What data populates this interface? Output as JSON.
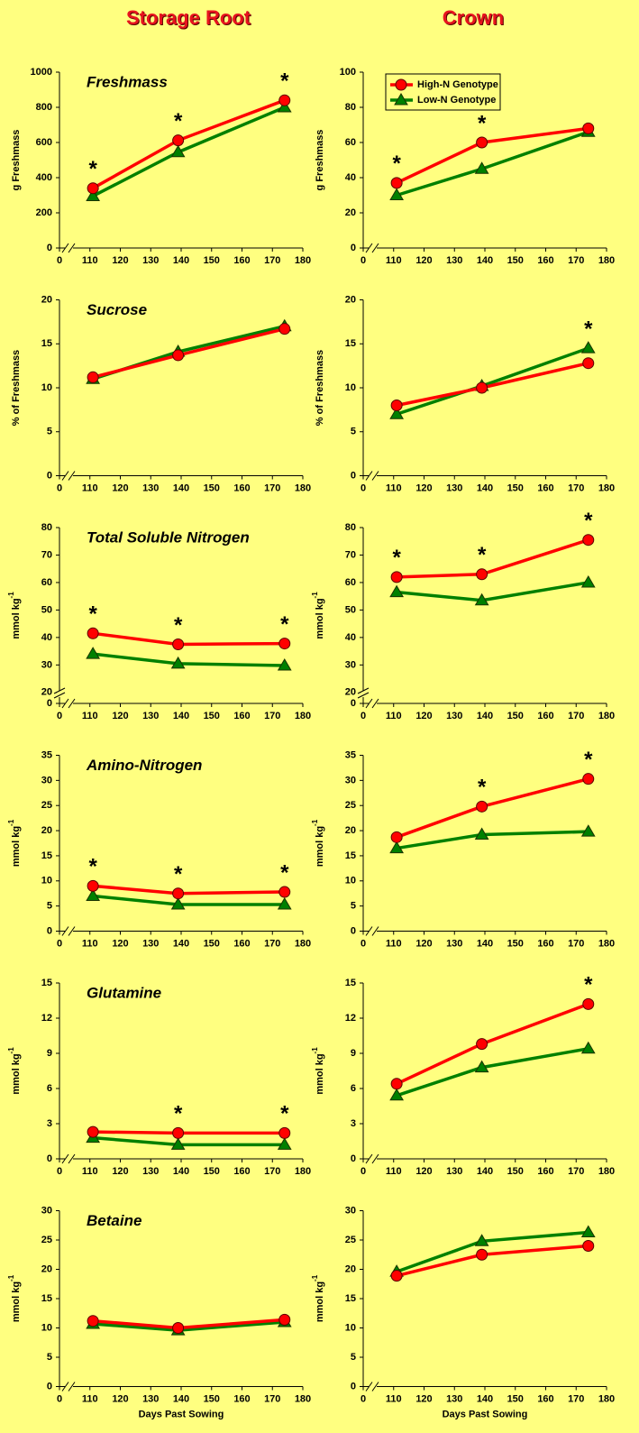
{
  "headers": [
    "Storage Root",
    "Crown"
  ],
  "chart_data": [
    {
      "type": "line",
      "title": "Freshmass",
      "y_label": "g Freshmass",
      "x": [
        111,
        139,
        174
      ],
      "xlim": [
        100,
        180
      ],
      "xticks": [
        0,
        110,
        120,
        130,
        140,
        150,
        160,
        170,
        180
      ],
      "x_break": true,
      "ylim": [
        0,
        1000
      ],
      "yticks": [
        0,
        200,
        400,
        600,
        800,
        1000
      ],
      "series": [
        {
          "color": "#ff0000",
          "marker": "circle",
          "values": [
            340,
            612,
            840
          ]
        },
        {
          "color": "#008000",
          "marker": "triangle",
          "values": [
            295,
            545,
            800
          ]
        }
      ],
      "significance_label": "*",
      "significant": [
        true,
        true,
        true
      ]
    },
    {
      "type": "line",
      "y_label": "g Freshmass",
      "x": [
        111,
        139,
        174
      ],
      "xlim": [
        100,
        180
      ],
      "xticks": [
        0,
        110,
        120,
        130,
        140,
        150,
        160,
        170,
        180
      ],
      "x_break": true,
      "ylim": [
        0,
        100
      ],
      "yticks": [
        0,
        20,
        40,
        60,
        80,
        100
      ],
      "series": [
        {
          "name": "High-N Genotype",
          "color": "#ff0000",
          "marker": "circle",
          "values": [
            37,
            60,
            68
          ]
        },
        {
          "name": "Low-N Genotype",
          "color": "#008000",
          "marker": "triangle",
          "values": [
            30,
            45,
            66
          ]
        }
      ],
      "legend": "upper left",
      "significance_label": "*",
      "significant": [
        true,
        true,
        false
      ]
    },
    {
      "type": "line",
      "title": "Sucrose",
      "y_label": "% of Freshmass",
      "x": [
        111,
        139,
        174
      ],
      "xlim": [
        100,
        180
      ],
      "xticks": [
        0,
        110,
        120,
        130,
        140,
        150,
        160,
        170,
        180
      ],
      "x_break": true,
      "ylim": [
        0,
        20
      ],
      "yticks": [
        0,
        5,
        10,
        15,
        20
      ],
      "series": [
        {
          "color": "#ff0000",
          "marker": "circle",
          "values": [
            11.2,
            13.7,
            16.7
          ]
        },
        {
          "color": "#008000",
          "marker": "triangle",
          "values": [
            11.0,
            14.1,
            17.0
          ]
        }
      ],
      "significance_label": "*",
      "significant": [
        false,
        false,
        false
      ]
    },
    {
      "type": "line",
      "y_label": "% of Freshmass",
      "x": [
        111,
        139,
        174
      ],
      "xlim": [
        100,
        180
      ],
      "xticks": [
        0,
        110,
        120,
        130,
        140,
        150,
        160,
        170,
        180
      ],
      "x_break": true,
      "ylim": [
        0,
        20
      ],
      "yticks": [
        0,
        5,
        10,
        15,
        20
      ],
      "series": [
        {
          "color": "#ff0000",
          "marker": "circle",
          "values": [
            8.0,
            10.0,
            12.8
          ]
        },
        {
          "color": "#008000",
          "marker": "triangle",
          "values": [
            7.0,
            10.2,
            14.5
          ]
        }
      ],
      "significance_label": "*",
      "significant": [
        false,
        false,
        true
      ]
    },
    {
      "type": "line",
      "title": "Total Soluble Nitrogen",
      "y_label": "mmol kg",
      "y_label_sup": "-1",
      "x": [
        111,
        139,
        174
      ],
      "xlim": [
        100,
        180
      ],
      "xticks": [
        0,
        110,
        120,
        130,
        140,
        150,
        160,
        170,
        180
      ],
      "x_break": true,
      "ylim": [
        16,
        80
      ],
      "yticks": [
        0,
        20,
        30,
        40,
        50,
        60,
        70,
        80
      ],
      "y_break": true,
      "series": [
        {
          "color": "#ff0000",
          "marker": "circle",
          "values": [
            41.5,
            37.5,
            37.8
          ]
        },
        {
          "color": "#008000",
          "marker": "triangle",
          "values": [
            34,
            30.5,
            29.8
          ]
        }
      ],
      "significance_label": "*",
      "significant": [
        true,
        true,
        true
      ]
    },
    {
      "type": "line",
      "y_label": "mmol kg",
      "y_label_sup": "-1",
      "x": [
        111,
        139,
        174
      ],
      "xlim": [
        100,
        180
      ],
      "xticks": [
        0,
        110,
        120,
        130,
        140,
        150,
        160,
        170,
        180
      ],
      "x_break": true,
      "ylim": [
        16,
        80
      ],
      "yticks": [
        0,
        20,
        30,
        40,
        50,
        60,
        70,
        80
      ],
      "y_break": true,
      "series": [
        {
          "color": "#ff0000",
          "marker": "circle",
          "values": [
            62,
            63,
            75.5
          ]
        },
        {
          "color": "#008000",
          "marker": "triangle",
          "values": [
            56.5,
            53.5,
            60
          ]
        }
      ],
      "significance_label": "*",
      "significant": [
        true,
        true,
        true
      ]
    },
    {
      "type": "line",
      "title": "Amino-Nitrogen",
      "y_label": "mmol kg",
      "y_label_sup": "-1",
      "x": [
        111,
        139,
        174
      ],
      "xlim": [
        100,
        180
      ],
      "xticks": [
        0,
        110,
        120,
        130,
        140,
        150,
        160,
        170,
        180
      ],
      "x_break": true,
      "ylim": [
        0,
        35
      ],
      "yticks": [
        0,
        5,
        10,
        15,
        20,
        25,
        30,
        35
      ],
      "series": [
        {
          "color": "#ff0000",
          "marker": "circle",
          "values": [
            9,
            7.5,
            7.8
          ]
        },
        {
          "color": "#008000",
          "marker": "triangle",
          "values": [
            7,
            5.3,
            5.3
          ]
        }
      ],
      "significance_label": "*",
      "significant": [
        true,
        true,
        true
      ]
    },
    {
      "type": "line",
      "y_label": "mmol kg",
      "y_label_sup": "-1",
      "x": [
        111,
        139,
        174
      ],
      "xlim": [
        100,
        180
      ],
      "xticks": [
        0,
        110,
        120,
        130,
        140,
        150,
        160,
        170,
        180
      ],
      "x_break": true,
      "ylim": [
        0,
        35
      ],
      "yticks": [
        0,
        5,
        10,
        15,
        20,
        25,
        30,
        35
      ],
      "series": [
        {
          "color": "#ff0000",
          "marker": "circle",
          "values": [
            18.7,
            24.8,
            30.3
          ]
        },
        {
          "color": "#008000",
          "marker": "triangle",
          "values": [
            16.5,
            19.2,
            19.8
          ]
        }
      ],
      "significance_label": "*",
      "significant": [
        false,
        true,
        true
      ]
    },
    {
      "type": "line",
      "title": "Glutamine",
      "y_label": "mmol kg",
      "y_label_sup": "-1",
      "x": [
        111,
        139,
        174
      ],
      "xlim": [
        100,
        180
      ],
      "xticks": [
        0,
        110,
        120,
        130,
        140,
        150,
        160,
        170,
        180
      ],
      "x_break": true,
      "ylim": [
        0,
        15
      ],
      "yticks": [
        0,
        3,
        6,
        9,
        12,
        15
      ],
      "series": [
        {
          "color": "#ff0000",
          "marker": "circle",
          "values": [
            2.3,
            2.2,
            2.2
          ]
        },
        {
          "color": "#008000",
          "marker": "triangle",
          "values": [
            1.8,
            1.2,
            1.2
          ]
        }
      ],
      "significance_label": "*",
      "significant": [
        false,
        true,
        true
      ]
    },
    {
      "type": "line",
      "y_label": "mmol kg",
      "y_label_sup": "-1",
      "x": [
        111,
        139,
        174
      ],
      "xlim": [
        100,
        180
      ],
      "xticks": [
        0,
        110,
        120,
        130,
        140,
        150,
        160,
        170,
        180
      ],
      "x_break": true,
      "ylim": [
        0,
        15
      ],
      "yticks": [
        0,
        3,
        6,
        9,
        12,
        15
      ],
      "series": [
        {
          "color": "#ff0000",
          "marker": "circle",
          "values": [
            6.4,
            9.8,
            13.2
          ]
        },
        {
          "color": "#008000",
          "marker": "triangle",
          "values": [
            5.4,
            7.8,
            9.4
          ]
        }
      ],
      "significance_label": "*",
      "significant": [
        false,
        false,
        true
      ]
    },
    {
      "type": "line",
      "title": "Betaine",
      "y_label": "mmol kg",
      "y_label_sup": "-1",
      "x_label": "Days Past Sowing",
      "x": [
        111,
        139,
        174
      ],
      "xlim": [
        100,
        180
      ],
      "xticks": [
        0,
        110,
        120,
        130,
        140,
        150,
        160,
        170,
        180
      ],
      "x_break": true,
      "ylim": [
        0,
        30
      ],
      "yticks": [
        0,
        5,
        10,
        15,
        20,
        25,
        30
      ],
      "series": [
        {
          "color": "#ff0000",
          "marker": "circle",
          "values": [
            11.2,
            10,
            11.4
          ]
        },
        {
          "color": "#008000",
          "marker": "triangle",
          "values": [
            10.7,
            9.6,
            11.0
          ]
        }
      ],
      "significance_label": "*",
      "significant": [
        false,
        false,
        false
      ]
    },
    {
      "type": "line",
      "y_label": "mmol kg",
      "y_label_sup": "-1",
      "x_label": "Days Past Sowing",
      "x": [
        111,
        139,
        174
      ],
      "xlim": [
        100,
        180
      ],
      "xticks": [
        0,
        110,
        120,
        130,
        140,
        150,
        160,
        170,
        180
      ],
      "x_break": true,
      "ylim": [
        0,
        30
      ],
      "yticks": [
        0,
        5,
        10,
        15,
        20,
        25,
        30
      ],
      "series": [
        {
          "color": "#ff0000",
          "marker": "circle",
          "values": [
            18.9,
            22.5,
            24
          ]
        },
        {
          "color": "#008000",
          "marker": "triangle",
          "values": [
            19.6,
            24.8,
            26.3
          ]
        }
      ],
      "significance_label": "*",
      "significant": [
        false,
        false,
        false
      ]
    }
  ]
}
